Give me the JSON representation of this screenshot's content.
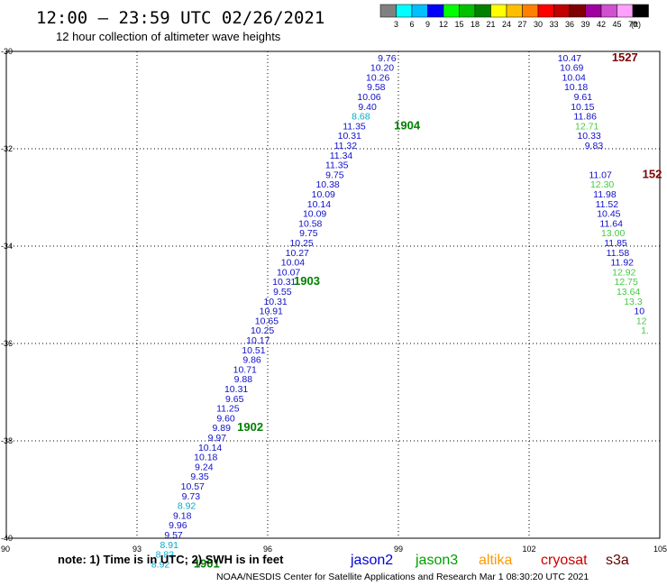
{
  "header": {
    "title": "12:00 – 23:59 UTC 02/26/2021",
    "subtitle": "12 hour collection of altimeter wave heights"
  },
  "colorbar": {
    "labels": [
      "3",
      "6",
      "9",
      "12",
      "15",
      "18",
      "21",
      "24",
      "27",
      "30",
      "33",
      "36",
      "39",
      "42",
      "45",
      "70"
    ],
    "unit": "(ft)",
    "colors": [
      "#808080",
      "#00ffff",
      "#00bfff",
      "#0000ff",
      "#00ff00",
      "#00c000",
      "#008000",
      "#ffff00",
      "#ffbf00",
      "#ff8000",
      "#ff0000",
      "#c00000",
      "#800000",
      "#a000a0",
      "#d050d0",
      "#ffa0ff",
      "#000000"
    ]
  },
  "footer": {
    "note": "note:  1) Time is in UTC;  2) SWH is in feet",
    "satellites": [
      {
        "name": "jason2",
        "color": "#0000dd"
      },
      {
        "name": "jason3",
        "color": "#00a000"
      },
      {
        "name": "altika",
        "color": "#ff9900"
      },
      {
        "name": "cryosat",
        "color": "#cc0000"
      },
      {
        "name": "s3a",
        "color": "#660000"
      }
    ],
    "credit": "NOAA/NESDIS Center for Satellite Applications and Research     Mar  1 08:30:20 UTC 2021"
  },
  "chart_data": {
    "type": "scatter",
    "title": "12:00 – 23:59 UTC 02/26/2021",
    "subtitle": "12 hour collection of altimeter wave heights",
    "xlim": [
      90,
      105
    ],
    "ylim": [
      -40,
      -30
    ],
    "x_ticks": [
      "90",
      "93",
      "96",
      "99",
      "102",
      "105"
    ],
    "y_ticks": [
      "-30",
      "-32",
      "-34",
      "-36",
      "-38",
      "-40"
    ],
    "grid": true,
    "legend": "bottom",
    "series": [
      {
        "color": "#1010c8",
        "points": [
          {
            "x": 98.95,
            "y": -30.2,
            "label": "9.76"
          },
          {
            "x": 98.9,
            "y": -30.4,
            "label": "10.20"
          },
          {
            "x": 98.8,
            "y": -30.6,
            "label": "10.26"
          },
          {
            "x": 98.7,
            "y": -30.8,
            "label": "9.58"
          },
          {
            "x": 98.6,
            "y": -31.0,
            "label": "10.06"
          },
          {
            "x": 98.5,
            "y": -31.2,
            "label": "9.40"
          },
          {
            "x": 98.35,
            "y": -31.4,
            "label": "8.68",
            "color": "#00aacc"
          },
          {
            "x": 98.25,
            "y": -31.6,
            "label": "11.35"
          },
          {
            "x": 98.15,
            "y": -31.8,
            "label": "10.31"
          },
          {
            "x": 98.05,
            "y": -32.0,
            "label": "11.32"
          },
          {
            "x": 97.95,
            "y": -32.2,
            "label": "11.34"
          },
          {
            "x": 97.85,
            "y": -32.4,
            "label": "11.35"
          },
          {
            "x": 97.75,
            "y": -32.6,
            "label": "9.75"
          },
          {
            "x": 97.65,
            "y": -32.8,
            "label": "10.38"
          },
          {
            "x": 97.55,
            "y": -33.0,
            "label": "10.09"
          },
          {
            "x": 97.45,
            "y": -33.2,
            "label": "10.14"
          },
          {
            "x": 97.35,
            "y": -33.4,
            "label": "10.09"
          },
          {
            "x": 97.25,
            "y": -33.6,
            "label": "10.58"
          },
          {
            "x": 97.15,
            "y": -33.8,
            "label": "9.75"
          },
          {
            "x": 97.05,
            "y": -34.0,
            "label": "10.25"
          },
          {
            "x": 96.95,
            "y": -34.2,
            "label": "10.27"
          },
          {
            "x": 96.85,
            "y": -34.4,
            "label": "10.04"
          },
          {
            "x": 96.75,
            "y": -34.6,
            "label": "10.07"
          },
          {
            "x": 96.65,
            "y": -34.8,
            "label": "10.31"
          },
          {
            "x": 96.55,
            "y": -35.0,
            "label": "9.55"
          },
          {
            "x": 96.45,
            "y": -35.2,
            "label": "10.31"
          },
          {
            "x": 96.35,
            "y": -35.4,
            "label": "10.91"
          },
          {
            "x": 96.25,
            "y": -35.6,
            "label": "10.65"
          },
          {
            "x": 96.15,
            "y": -35.8,
            "label": "10.25"
          },
          {
            "x": 96.05,
            "y": -36.0,
            "label": "10.17"
          },
          {
            "x": 95.95,
            "y": -36.2,
            "label": "10.51"
          },
          {
            "x": 95.85,
            "y": -36.4,
            "label": "9.86"
          },
          {
            "x": 95.75,
            "y": -36.6,
            "label": "10.71"
          },
          {
            "x": 95.65,
            "y": -36.8,
            "label": "9.88"
          },
          {
            "x": 95.55,
            "y": -37.0,
            "label": "10.31"
          },
          {
            "x": 95.45,
            "y": -37.2,
            "label": "9.65"
          },
          {
            "x": 95.35,
            "y": -37.4,
            "label": "11.25"
          },
          {
            "x": 95.25,
            "y": -37.6,
            "label": "9.60"
          },
          {
            "x": 95.15,
            "y": -37.8,
            "label": "9.89"
          },
          {
            "x": 95.05,
            "y": -38.0,
            "label": "9.97"
          },
          {
            "x": 94.95,
            "y": -38.2,
            "label": "10.14"
          },
          {
            "x": 94.85,
            "y": -38.4,
            "label": "10.18"
          },
          {
            "x": 94.75,
            "y": -38.6,
            "label": "9.24"
          },
          {
            "x": 94.65,
            "y": -38.8,
            "label": "9.35"
          },
          {
            "x": 94.55,
            "y": -39.0,
            "label": "10.57"
          },
          {
            "x": 94.45,
            "y": -39.2,
            "label": "9.73"
          },
          {
            "x": 94.35,
            "y": -39.4,
            "label": "8.92",
            "color": "#00aacc"
          },
          {
            "x": 94.25,
            "y": -39.6,
            "label": "9.18"
          },
          {
            "x": 94.15,
            "y": -39.8,
            "label": "9.96"
          },
          {
            "x": 94.05,
            "y": -40.0,
            "label": "9.57"
          },
          {
            "x": 93.95,
            "y": -40.2,
            "label": "8.91",
            "color": "#00aacc"
          },
          {
            "x": 93.85,
            "y": -40.4,
            "label": "8.83",
            "color": "#00aacc"
          },
          {
            "x": 93.75,
            "y": -40.6,
            "label": "8.92",
            "color": "#00aacc"
          }
        ]
      },
      {
        "color": "#1010c8",
        "points": [
          {
            "x": 103.2,
            "y": -30.2,
            "label": "10.47"
          },
          {
            "x": 103.25,
            "y": -30.4,
            "label": "10.69"
          },
          {
            "x": 103.3,
            "y": -30.6,
            "label": "10.04"
          },
          {
            "x": 103.35,
            "y": -30.8,
            "label": "10.18"
          },
          {
            "x": 103.45,
            "y": -31.0,
            "label": "9.61"
          },
          {
            "x": 103.5,
            "y": -31.2,
            "label": "10.15"
          },
          {
            "x": 103.55,
            "y": -31.4,
            "label": "11.86"
          },
          {
            "x": 103.6,
            "y": -31.6,
            "label": "12.71",
            "color": "#44cc44"
          },
          {
            "x": 103.65,
            "y": -31.8,
            "label": "10.33"
          },
          {
            "x": 103.7,
            "y": -32.0,
            "label": "9.83"
          },
          {
            "x": 103.9,
            "y": -32.6,
            "label": "11.07"
          },
          {
            "x": 103.95,
            "y": -32.8,
            "label": "12.30",
            "color": "#44cc44"
          },
          {
            "x": 104.0,
            "y": -33.0,
            "label": "11.98"
          },
          {
            "x": 104.05,
            "y": -33.2,
            "label": "11.52"
          },
          {
            "x": 104.1,
            "y": -33.4,
            "label": "10.45"
          },
          {
            "x": 104.15,
            "y": -33.6,
            "label": "11.64"
          },
          {
            "x": 104.2,
            "y": -33.8,
            "label": "13.00",
            "color": "#44cc44"
          },
          {
            "x": 104.25,
            "y": -34.0,
            "label": "11.85"
          },
          {
            "x": 104.3,
            "y": -34.2,
            "label": "11.58"
          },
          {
            "x": 104.4,
            "y": -34.4,
            "label": "11.92"
          },
          {
            "x": 104.45,
            "y": -34.6,
            "label": "12.92",
            "color": "#44cc44"
          },
          {
            "x": 104.5,
            "y": -34.8,
            "label": "12.75",
            "color": "#44cc44"
          },
          {
            "x": 104.55,
            "y": -35.0,
            "label": "13.64",
            "color": "#44cc44"
          },
          {
            "x": 104.6,
            "y": -35.2,
            "label": "13.3",
            "color": "#44cc44"
          },
          {
            "x": 104.65,
            "y": -35.4,
            "label": "10",
            "color": "#1010c8"
          },
          {
            "x": 104.7,
            "y": -35.6,
            "label": "12",
            "color": "#44cc44"
          },
          {
            "x": 104.75,
            "y": -35.8,
            "label": "1.",
            "color": "#44cc44"
          }
        ]
      }
    ],
    "time_labels": [
      {
        "x": 98.9,
        "y": -31.6,
        "label": "1904",
        "color": "#008000"
      },
      {
        "x": 96.6,
        "y": -34.8,
        "label": "1903",
        "color": "#008000"
      },
      {
        "x": 95.3,
        "y": -37.8,
        "label": "1902",
        "color": "#008000"
      },
      {
        "x": 94.3,
        "y": -40.6,
        "label": "1901",
        "color": "#008000"
      },
      {
        "x": 103.9,
        "y": -30.2,
        "label": "1527",
        "color": "#800000"
      },
      {
        "x": 104.6,
        "y": -32.6,
        "label": "152",
        "color": "#800000"
      }
    ]
  }
}
